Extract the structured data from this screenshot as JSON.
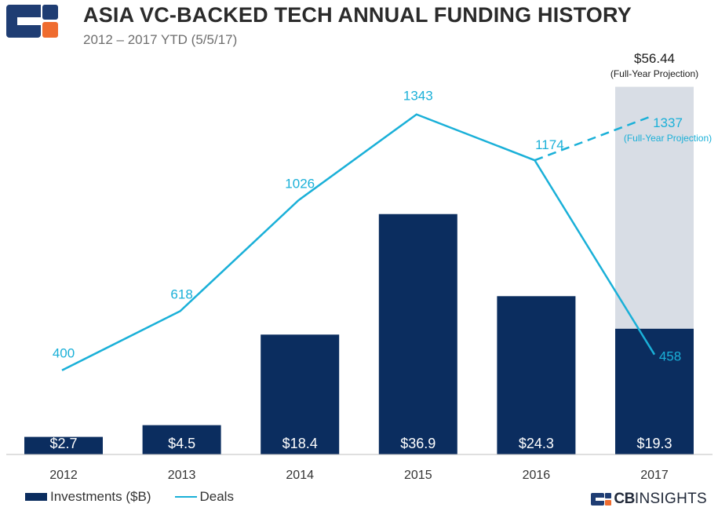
{
  "header": {
    "title": "ASIA VC-BACKED TECH ANNUAL FUNDING HISTORY",
    "subtitle": "2012 – 2017 YTD (5/5/17)"
  },
  "colors": {
    "bar": "#0b2d5f",
    "line": "#1ab0d8",
    "projection_bar": "#d8dde5",
    "logo_blue": "#1f3d73",
    "logo_orange": "#ef6c2f"
  },
  "legend": {
    "investments_label": "Investments ($B)",
    "deals_label": "Deals"
  },
  "brand": {
    "cb": "CB",
    "insights": "INSIGHTS"
  },
  "chart_data": {
    "type": "bar",
    "categories": [
      "2012",
      "2013",
      "2014",
      "2015",
      "2016",
      "2017"
    ],
    "series": [
      {
        "name": "Investments ($B)",
        "type": "bar",
        "values": [
          2.7,
          4.5,
          18.4,
          36.9,
          24.3,
          19.3
        ],
        "labels": [
          "$2.7",
          "$4.5",
          "$18.4",
          "$36.9",
          "$24.3",
          "$19.3"
        ]
      },
      {
        "name": "Deals",
        "type": "line",
        "values": [
          400,
          618,
          1026,
          1343,
          1174,
          458
        ],
        "labels": [
          "400",
          "618",
          "1026",
          "1343",
          "1174",
          "458"
        ]
      }
    ],
    "projections": {
      "investments": {
        "category": "2017",
        "value": 56.44,
        "label": "$56.44",
        "note": "(Full-Year Projection)"
      },
      "deals": {
        "category": "2017",
        "value": 1337,
        "label": "1337",
        "note": "(Full-Year Projection)"
      }
    },
    "legend_position": "bottom-left",
    "grid": false
  }
}
